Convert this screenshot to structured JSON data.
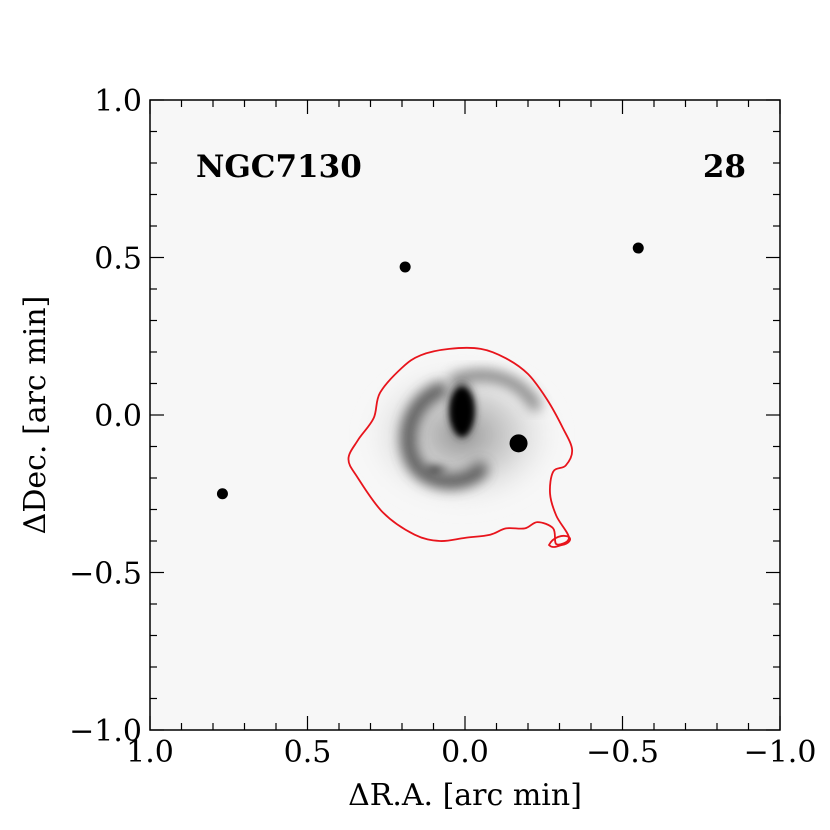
{
  "figure": {
    "galaxy_label": "NGC7130",
    "panel_number": "28",
    "contour_color": "#e8141c"
  },
  "chart_data": {
    "type": "scatter",
    "title": "",
    "xlabel": "ΔR.A. [arc min]",
    "ylabel": "ΔDec. [arc min]",
    "xlim": [
      1.0,
      -1.0
    ],
    "ylim": [
      -1.0,
      1.0
    ],
    "x_ticks": [
      {
        "value": 1.0,
        "label": "1.0"
      },
      {
        "value": 0.5,
        "label": "0.5"
      },
      {
        "value": 0.0,
        "label": "0.0"
      },
      {
        "value": -0.5,
        "label": "−0.5"
      },
      {
        "value": -1.0,
        "label": "−1.0"
      }
    ],
    "y_ticks": [
      {
        "value": 1.0,
        "label": "1.0"
      },
      {
        "value": 0.5,
        "label": "0.5"
      },
      {
        "value": 0.0,
        "label": "0.0"
      },
      {
        "value": -0.5,
        "label": "−0.5"
      },
      {
        "value": -1.0,
        "label": "−1.0"
      }
    ],
    "stars": [
      {
        "x": 0.19,
        "y": 0.47
      },
      {
        "x": -0.55,
        "y": 0.53
      },
      {
        "x": 0.77,
        "y": -0.25
      },
      {
        "x": -0.17,
        "y": -0.09
      }
    ],
    "contour": [
      [
        0.2,
        0.15
      ],
      [
        0.14,
        0.19
      ],
      [
        0.05,
        0.21
      ],
      [
        -0.05,
        0.21
      ],
      [
        -0.13,
        0.18
      ],
      [
        -0.2,
        0.13
      ],
      [
        -0.26,
        0.05
      ],
      [
        -0.31,
        -0.04
      ],
      [
        -0.34,
        -0.11
      ],
      [
        -0.32,
        -0.16
      ],
      [
        -0.28,
        -0.18
      ],
      [
        -0.27,
        -0.25
      ],
      [
        -0.29,
        -0.32
      ],
      [
        -0.33,
        -0.39
      ],
      [
        -0.29,
        -0.41
      ],
      [
        -0.28,
        -0.36
      ],
      [
        -0.23,
        -0.34
      ],
      [
        -0.19,
        -0.36
      ],
      [
        -0.13,
        -0.36
      ],
      [
        -0.08,
        -0.38
      ],
      [
        0.0,
        -0.39
      ],
      [
        0.08,
        -0.4
      ],
      [
        0.16,
        -0.38
      ],
      [
        0.26,
        -0.31
      ],
      [
        0.34,
        -0.2
      ],
      [
        0.37,
        -0.14
      ],
      [
        0.34,
        -0.08
      ],
      [
        0.29,
        -0.01
      ],
      [
        0.27,
        0.07
      ]
    ]
  }
}
